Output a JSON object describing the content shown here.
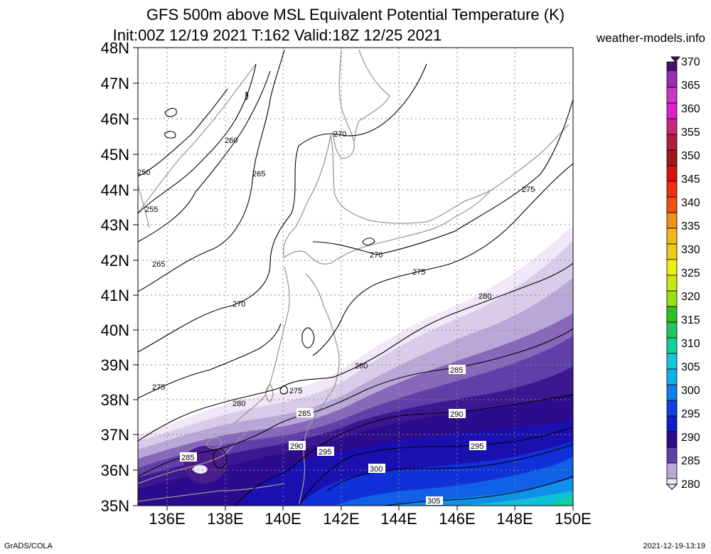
{
  "header": {
    "title_line1": "GFS 500m above MSL Equivalent Potential Temperature (K)",
    "title_line2": "Init:00Z 12/19 2021 T:162 Valid:18Z 12/25 2021",
    "site": "weather-models.info"
  },
  "map": {
    "lat_labels": [
      "48N",
      "47N",
      "46N",
      "45N",
      "44N",
      "43N",
      "42N",
      "41N",
      "40N",
      "39N",
      "38N",
      "37N",
      "36N",
      "35N"
    ],
    "lon_labels": [
      "136E",
      "138E",
      "140E",
      "142E",
      "144E",
      "146E",
      "148E",
      "150E"
    ],
    "contour_labels": [
      "250",
      "255",
      "260",
      "265",
      "265",
      "270",
      "270",
      "270",
      "275",
      "275",
      "275",
      "275",
      "280",
      "280",
      "280",
      "285",
      "285",
      "285",
      "290",
      "290",
      "295",
      "295",
      "300",
      "305"
    ]
  },
  "colorbar": {
    "labels": [
      "370",
      "365",
      "360",
      "355",
      "350",
      "345",
      "340",
      "335",
      "330",
      "325",
      "320",
      "315",
      "310",
      "305",
      "300",
      "295",
      "290",
      "285",
      "280"
    ],
    "colors": [
      "#4a0f6e",
      "#9b2bb0",
      "#e020d0",
      "#c8287a",
      "#a01818",
      "#d81010",
      "#f05010",
      "#f0901a",
      "#f0c818",
      "#f0f010",
      "#98e010",
      "#30c020",
      "#10d0a0",
      "#10b0e8",
      "#1060e8",
      "#1020c8",
      "#2c0c8c",
      "#6040a8",
      "#b8a8d8",
      "#f0e8f8"
    ]
  },
  "footer": {
    "left": "GrADS/COLA",
    "right": "2021-12-19-13:19"
  }
}
